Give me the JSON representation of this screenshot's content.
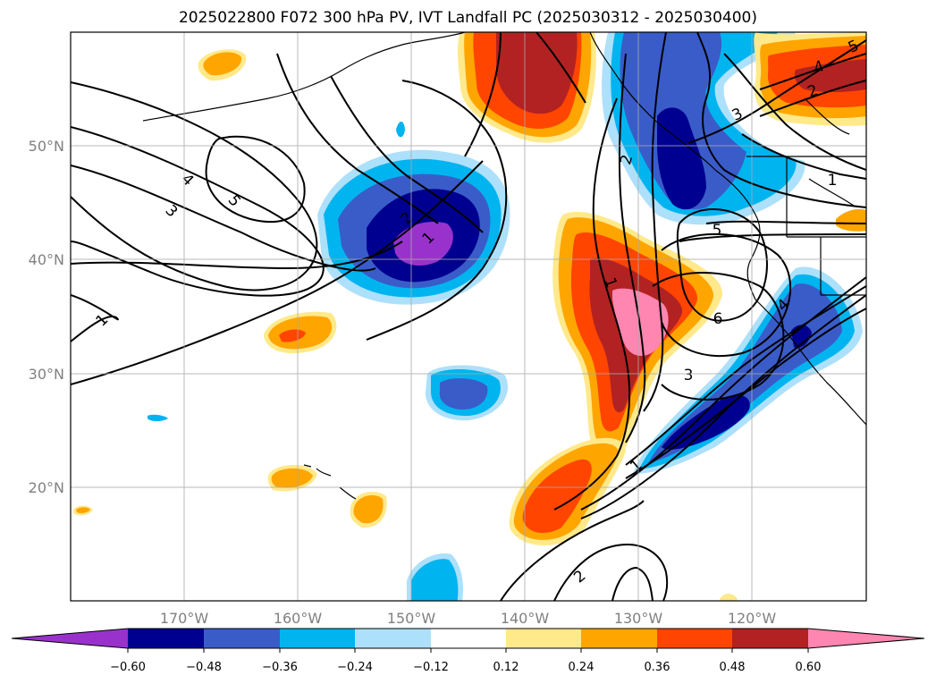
{
  "title": "2025022800 F072 300 hPa PV, IVT Landfall PC (2025030312 - 2025030400)",
  "lat_labels": [
    "50°N",
    "40°N",
    "30°N",
    "20°N"
  ],
  "lon_labels": [
    "170°W",
    "160°W",
    "150°W",
    "140°W",
    "130°W",
    "120°W"
  ],
  "colorbar": {
    "colors": [
      "#9932cc",
      "#000090",
      "#3a5cc9",
      "#00b4f0",
      "#ade0fa",
      "#ffffff",
      "#ffe98a",
      "#ffa500",
      "#ff4500",
      "#b22222",
      "#ff86b0"
    ],
    "tick_labels": [
      "−0.60",
      "−0.48",
      "−0.36",
      "−0.24",
      "−0.12",
      "0.12",
      "0.24",
      "0.36",
      "0.48",
      "0.60"
    ]
  },
  "contour_labels": [
    "1",
    "2",
    "3",
    "4",
    "5",
    "6"
  ]
}
